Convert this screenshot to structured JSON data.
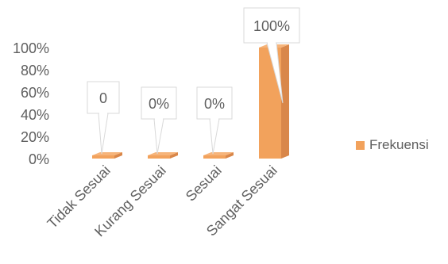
{
  "chart_data": {
    "type": "bar",
    "categories": [
      "Tidak Sesuai",
      "Kurang Sesuai",
      "Sesuai",
      "Sangat Sesuai"
    ],
    "y_ticks": [
      "0%",
      "20%",
      "40%",
      "60%",
      "80%",
      "100%"
    ],
    "ylim": [
      0,
      100
    ],
    "series": [
      {
        "name": "Frekuensi",
        "values": [
          0,
          0,
          0,
          100
        ],
        "data_labels": [
          "0",
          "0%",
          "0%",
          "100%"
        ]
      }
    ],
    "legend_position": "right",
    "grid": false
  },
  "colors": {
    "bar_front": "#f2a25c",
    "bar_side": "#d9874a",
    "bar_top": "#f6b47a",
    "text": "#5f5f5f",
    "callout_border": "#d9d9d9"
  }
}
